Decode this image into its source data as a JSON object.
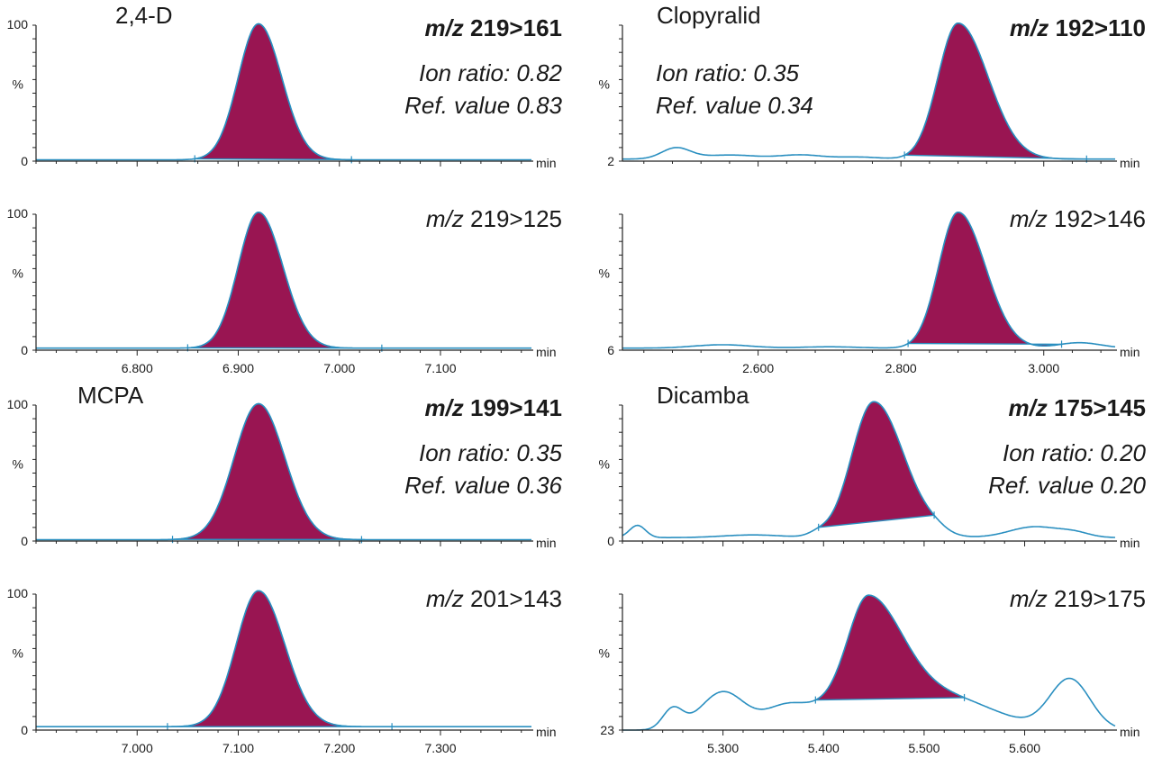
{
  "figure": {
    "description_free": true,
    "colors": {
      "peak_fill": "#991552",
      "trace": "#2a8fc0",
      "axis": "#222222"
    },
    "min_label": "min",
    "percent_label": "%"
  },
  "chart_data": [
    {
      "type": "line",
      "panel": "top-left-1",
      "compound": "2,4-D",
      "mz_prefix": "m/z",
      "mz_value": "219>161",
      "bold": true,
      "ion_ratio": "Ion ratio: 0.82",
      "ref_value": "Ref. value 0.83",
      "y_top_label": "100",
      "y_bottom_label": "0",
      "show_x_ticks": false,
      "xlim": [
        6.7,
        7.19
      ],
      "ymax": 100,
      "x_ticks": [
        6.8,
        6.9,
        7.0,
        7.1
      ],
      "x_tick_labels": [],
      "peak": {
        "rt": 6.92,
        "sigma_left": 0.02,
        "sigma_right": 0.023,
        "height": 100,
        "start": 6.857,
        "end": 7.012
      },
      "noise": {
        "offset": 1.0,
        "bumps": []
      },
      "integration_marks": [
        6.857,
        7.012
      ]
    },
    {
      "type": "line",
      "panel": "top-left-2",
      "compound": "",
      "mz_prefix": "m/z",
      "mz_value": "219>125",
      "bold": false,
      "ion_ratio": "",
      "ref_value": "",
      "y_top_label": "100",
      "y_bottom_label": "0",
      "show_x_ticks": true,
      "xlim": [
        6.7,
        7.19
      ],
      "ymax": 100,
      "x_ticks": [
        6.8,
        6.9,
        7.0,
        7.1
      ],
      "x_tick_labels": [
        "6.800",
        "6.900",
        "7.000",
        "7.100"
      ],
      "peak": {
        "rt": 6.92,
        "sigma_left": 0.02,
        "sigma_right": 0.024,
        "height": 100,
        "start": 6.85,
        "end": 7.042
      },
      "noise": {
        "offset": 1.5,
        "bumps": []
      },
      "integration_marks": [
        6.85,
        7.042
      ]
    },
    {
      "type": "line",
      "panel": "top-right-1",
      "compound": "Clopyralid",
      "mz_prefix": "m/z",
      "mz_value": "192>110",
      "bold": true,
      "ion_ratio": "Ion ratio: 0.35",
      "ref_value": "Ref. value 0.34",
      "y_top_label": "",
      "y_bottom_label": "2",
      "show_x_ticks": false,
      "xlim": [
        2.41,
        3.1
      ],
      "ymax": 100,
      "x_ticks": [
        2.6,
        2.8,
        3.0
      ],
      "x_tick_labels": [],
      "peak": {
        "rt": 2.88,
        "sigma_left": 0.028,
        "sigma_right": 0.042,
        "height": 100,
        "start": 2.805,
        "end": 3.06
      },
      "noise": {
        "offset": 1.5,
        "bumps": [
          [
            2.485,
            0.02,
            8
          ],
          [
            2.56,
            0.04,
            3
          ],
          [
            2.66,
            0.03,
            3
          ],
          [
            2.74,
            0.03,
            1.5
          ]
        ]
      },
      "integration_marks": [
        2.805,
        3.06
      ]
    },
    {
      "type": "line",
      "panel": "top-right-2",
      "compound": "",
      "mz_prefix": "m/z",
      "mz_value": "192>146",
      "bold": false,
      "ion_ratio": "",
      "ref_value": "",
      "y_top_label": "",
      "y_bottom_label": "6",
      "show_x_ticks": true,
      "xlim": [
        2.41,
        3.1
      ],
      "ymax": 100,
      "x_ticks": [
        2.6,
        2.8,
        3.0
      ],
      "x_tick_labels": [
        "2.600",
        "2.800",
        "3.000"
      ],
      "peak": {
        "rt": 2.88,
        "sigma_left": 0.027,
        "sigma_right": 0.038,
        "height": 100,
        "start": 2.81,
        "end": 3.025
      },
      "noise": {
        "offset": 1.5,
        "bumps": [
          [
            2.55,
            0.04,
            2.5
          ],
          [
            2.7,
            0.04,
            1
          ],
          [
            3.05,
            0.03,
            4
          ]
        ]
      },
      "integration_marks": [
        2.81,
        3.025
      ]
    },
    {
      "type": "line",
      "panel": "bottom-left-1",
      "compound": "MCPA",
      "mz_prefix": "m/z",
      "mz_value": "199>141",
      "bold": true,
      "ion_ratio": "Ion ratio: 0.35",
      "ref_value": "Ref. value 0.36",
      "y_top_label": "100",
      "y_bottom_label": "0",
      "show_x_ticks": false,
      "xlim": [
        6.9,
        7.39
      ],
      "ymax": 100,
      "x_ticks": [
        7.0,
        7.1,
        7.2,
        7.3
      ],
      "x_tick_labels": [],
      "peak": {
        "rt": 7.12,
        "sigma_left": 0.024,
        "sigma_right": 0.026,
        "height": 100,
        "start": 7.035,
        "end": 7.222
      },
      "noise": {
        "offset": 1.0,
        "bumps": []
      },
      "integration_marks": [
        7.035,
        7.222
      ]
    },
    {
      "type": "line",
      "panel": "bottom-left-2",
      "compound": "",
      "mz_prefix": "m/z",
      "mz_value": "201>143",
      "bold": false,
      "ion_ratio": "",
      "ref_value": "",
      "y_top_label": "100",
      "y_bottom_label": "0",
      "show_x_ticks": true,
      "xlim": [
        6.9,
        7.39
      ],
      "ymax": 100,
      "x_ticks": [
        7.0,
        7.1,
        7.2,
        7.3
      ],
      "x_tick_labels": [
        "7.000",
        "7.100",
        "7.200",
        "7.300"
      ],
      "peak": {
        "rt": 7.12,
        "sigma_left": 0.022,
        "sigma_right": 0.026,
        "height": 100,
        "start": 7.03,
        "end": 7.252
      },
      "noise": {
        "offset": 2.5,
        "bumps": []
      },
      "integration_marks": [
        7.03,
        7.252
      ]
    },
    {
      "type": "line",
      "panel": "bottom-right-1",
      "compound": "Dicamba",
      "mz_prefix": "m/z",
      "mz_value": "175>145",
      "bold": true,
      "ion_ratio": "Ion ratio: 0.20",
      "ref_value": "Ref. value 0.20",
      "y_top_label": "",
      "y_bottom_label": "0",
      "show_x_ticks": false,
      "xlim": [
        5.2,
        5.69
      ],
      "ymax": 100,
      "x_ticks": [
        5.3,
        5.4,
        5.5,
        5.6
      ],
      "x_tick_labels": [],
      "peak": {
        "rt": 5.45,
        "sigma_left": 0.022,
        "sigma_right": 0.03,
        "height": 100,
        "start": 5.395,
        "end": 5.51
      },
      "noise": {
        "offset": 2.5,
        "bumps": [
          [
            5.215,
            0.008,
            9
          ],
          [
            5.33,
            0.03,
            2
          ],
          [
            5.395,
            0.01,
            3
          ],
          [
            5.51,
            0.012,
            3
          ],
          [
            5.61,
            0.025,
            8
          ],
          [
            5.65,
            0.015,
            3
          ]
        ]
      },
      "integration_marks": [
        5.395,
        5.51
      ]
    },
    {
      "type": "line",
      "panel": "bottom-right-2",
      "compound": "",
      "mz_prefix": "m/z",
      "mz_value": "219>175",
      "bold": false,
      "ion_ratio": "",
      "ref_value": "",
      "y_top_label": "",
      "y_bottom_label": "23",
      "show_x_ticks": true,
      "xlim": [
        5.2,
        5.69
      ],
      "ymax": 100,
      "x_ticks": [
        5.3,
        5.4,
        5.5,
        5.6
      ],
      "x_tick_labels": [
        "5.300",
        "5.400",
        "5.500",
        "5.600"
      ],
      "peak": {
        "rt": 5.445,
        "sigma_left": 0.02,
        "sigma_right": 0.034,
        "height": 75,
        "start": 5.392,
        "end": 5.54
      },
      "noise": {
        "offset": 0,
        "bumps": [
          [
            5.25,
            0.01,
            15
          ],
          [
            5.3,
            0.022,
            28
          ],
          [
            5.36,
            0.02,
            12
          ],
          [
            5.42,
            0.04,
            20
          ],
          [
            5.52,
            0.05,
            24
          ],
          [
            5.645,
            0.02,
            37
          ]
        ]
      },
      "integration_marks": [
        5.392,
        5.54
      ]
    }
  ]
}
